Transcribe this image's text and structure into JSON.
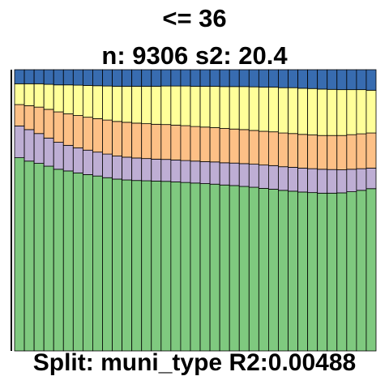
{
  "title": {
    "line1": "<= 36",
    "line2": "n: 9306 s2: 20.4"
  },
  "footer": "Split: muni_type R2:0.00488",
  "chart_data": {
    "type": "bar",
    "stacked": true,
    "normalized": true,
    "bar_count": 37,
    "ylim": [
      0,
      1
    ],
    "grid": false,
    "legend": "none",
    "series": [
      {
        "color": "#7fc97f",
        "values": [
          0.687,
          0.675,
          0.667,
          0.657,
          0.646,
          0.64,
          0.633,
          0.627,
          0.622,
          0.616,
          0.611,
          0.608,
          0.606,
          0.605,
          0.604,
          0.603,
          0.601,
          0.599,
          0.597,
          0.595,
          0.593,
          0.59,
          0.588,
          0.585,
          0.582,
          0.578,
          0.575,
          0.571,
          0.568,
          0.565,
          0.563,
          0.561,
          0.561,
          0.562,
          0.566,
          0.571,
          0.577
        ]
      },
      {
        "color": "#beaed4",
        "values": [
          0.113,
          0.112,
          0.106,
          0.1,
          0.096,
          0.091,
          0.089,
          0.087,
          0.085,
          0.084,
          0.082,
          0.081,
          0.08,
          0.079,
          0.078,
          0.078,
          0.078,
          0.078,
          0.078,
          0.078,
          0.079,
          0.079,
          0.08,
          0.081,
          0.082,
          0.083,
          0.084,
          0.084,
          0.085,
          0.085,
          0.085,
          0.085,
          0.084,
          0.082,
          0.08,
          0.077,
          0.073
        ]
      },
      {
        "color": "#fdc086",
        "values": [
          0.076,
          0.085,
          0.094,
          0.102,
          0.108,
          0.112,
          0.115,
          0.117,
          0.119,
          0.121,
          0.123,
          0.124,
          0.124,
          0.124,
          0.124,
          0.124,
          0.124,
          0.124,
          0.123,
          0.123,
          0.122,
          0.122,
          0.121,
          0.121,
          0.12,
          0.12,
          0.12,
          0.12,
          0.12,
          0.12,
          0.12,
          0.12,
          0.121,
          0.122,
          0.123,
          0.124,
          0.125
        ]
      },
      {
        "color": "#ffff99",
        "values": [
          0.074,
          0.078,
          0.083,
          0.089,
          0.096,
          0.103,
          0.108,
          0.113,
          0.117,
          0.121,
          0.125,
          0.128,
          0.131,
          0.133,
          0.135,
          0.137,
          0.139,
          0.141,
          0.143,
          0.145,
          0.147,
          0.149,
          0.151,
          0.153,
          0.155,
          0.157,
          0.159,
          0.161,
          0.163,
          0.164,
          0.165,
          0.165,
          0.164,
          0.163,
          0.16,
          0.157,
          0.152
        ]
      },
      {
        "color": "#386cb0",
        "values": [
          0.05,
          0.05,
          0.05,
          0.052,
          0.054,
          0.054,
          0.055,
          0.056,
          0.057,
          0.058,
          0.059,
          0.059,
          0.059,
          0.059,
          0.059,
          0.058,
          0.058,
          0.058,
          0.059,
          0.059,
          0.059,
          0.06,
          0.06,
          0.06,
          0.061,
          0.062,
          0.062,
          0.064,
          0.064,
          0.066,
          0.067,
          0.069,
          0.07,
          0.071,
          0.071,
          0.071,
          0.073
        ]
      }
    ]
  }
}
